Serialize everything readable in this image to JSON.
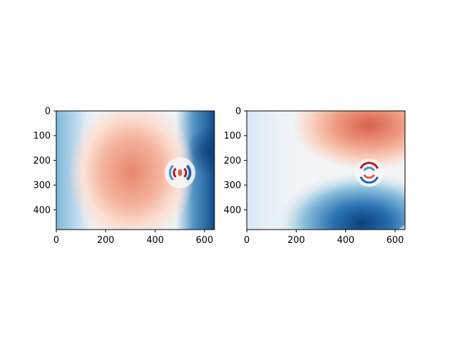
{
  "chart_data": [
    {
      "type": "heatmap",
      "title": "",
      "xlabel": "",
      "ylabel": "",
      "xlim": [
        0,
        640
      ],
      "ylim": [
        480,
        0
      ],
      "x_ticks": [
        0,
        200,
        400,
        600
      ],
      "y_ticks": [
        0,
        100,
        200,
        300,
        400
      ],
      "colormap": "RdBu_r",
      "source_center": [
        496,
        250
      ],
      "features": [
        {
          "label": "",
          "kind": "warm lobe",
          "center": [
            300,
            250
          ]
        },
        {
          "label": "",
          "kind": "cool edge",
          "center": [
            640,
            220
          ]
        }
      ]
    },
    {
      "type": "heatmap",
      "title": "",
      "xlabel": "",
      "ylabel": "",
      "xlim": [
        0,
        640
      ],
      "ylim": [
        480,
        0
      ],
      "x_ticks": [
        0,
        200,
        400,
        600
      ],
      "y_ticks": [
        0,
        100,
        200,
        300,
        400
      ],
      "colormap": "RdBu_r",
      "source_center": [
        496,
        250
      ],
      "features": [
        {
          "label": "",
          "kind": "warm lobe",
          "center": [
            500,
            60
          ]
        },
        {
          "label": "",
          "kind": "cool lobe",
          "center": [
            500,
            460
          ]
        }
      ]
    }
  ],
  "colors": {
    "dark_red": "#b2182b",
    "red": "#d6604d",
    "light_red": "#f4a582",
    "pale_red": "#fddbc7",
    "white": "#f7f7f7",
    "pale_blue": "#d1e5f0",
    "light_blue": "#92c5de",
    "blue": "#4393c3",
    "dark_blue": "#2166ac",
    "navy": "#053061"
  }
}
